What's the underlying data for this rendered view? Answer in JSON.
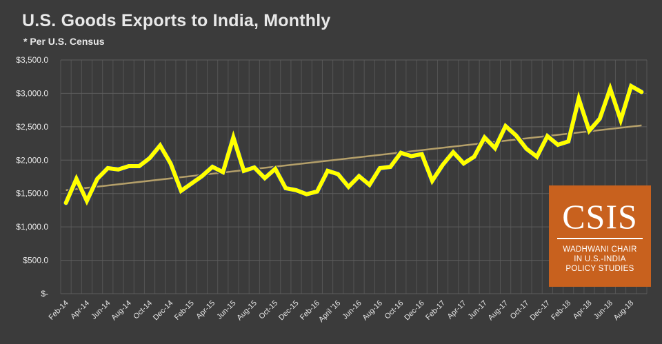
{
  "chart_data": {
    "type": "line",
    "title": "U.S. Goods Exports to India, Monthly",
    "subtitle": "* Per U.S. Census",
    "xlabel": "",
    "ylabel": "",
    "ylim": [
      0,
      3500
    ],
    "y_ticks": [
      0,
      500,
      1000,
      1500,
      2000,
      2500,
      3000,
      3500
    ],
    "y_tick_labels": [
      "$-",
      "$500.0",
      "$1,000.0",
      "$1,500.0",
      "$2,000.0",
      "$2,500.0",
      "$3,000.0",
      "$3,500.0"
    ],
    "x_tick_labels": [
      "Feb-14",
      "Apr-14",
      "Jun-14",
      "Aug-14",
      "Oct-14",
      "Dec-14",
      "Feb-15",
      "Apr-15",
      "Jun-15",
      "Aug-15",
      "Oct-15",
      "Dec-15",
      "Feb-16",
      "April '16",
      "Jun-16",
      "Aug-16",
      "Oct-16",
      "Dec-16",
      "Feb-17",
      "Apr-17",
      "Jun-17",
      "Aug-17",
      "Oct-17",
      "Dec-17",
      "Feb-18",
      "Apr-18",
      "Jun-18",
      "Aug-18"
    ],
    "grid": true,
    "series": [
      {
        "color": "#ffff00",
        "values": [
          1360,
          1720,
          1390,
          1720,
          1880,
          1860,
          1910,
          1910,
          2030,
          2220,
          1950,
          1540,
          1650,
          1760,
          1900,
          1820,
          2340,
          1840,
          1890,
          1730,
          1870,
          1580,
          1550,
          1490,
          1530,
          1840,
          1790,
          1600,
          1760,
          1630,
          1880,
          1900,
          2110,
          2060,
          2090,
          1690,
          1930,
          2120,
          1950,
          2050,
          2340,
          2180,
          2510,
          2370,
          2170,
          2050,
          2360,
          2230,
          2280,
          2920,
          2440,
          2620,
          3070,
          2600,
          3110,
          3020
        ]
      },
      {
        "color": "#b5a06a",
        "values": [
          1550,
          2520
        ]
      }
    ]
  },
  "logo": {
    "mark": "CSIS",
    "lines": [
      "WADHWANI CHAIR",
      "IN U.S.-INDIA",
      "POLICY STUDIES"
    ]
  }
}
